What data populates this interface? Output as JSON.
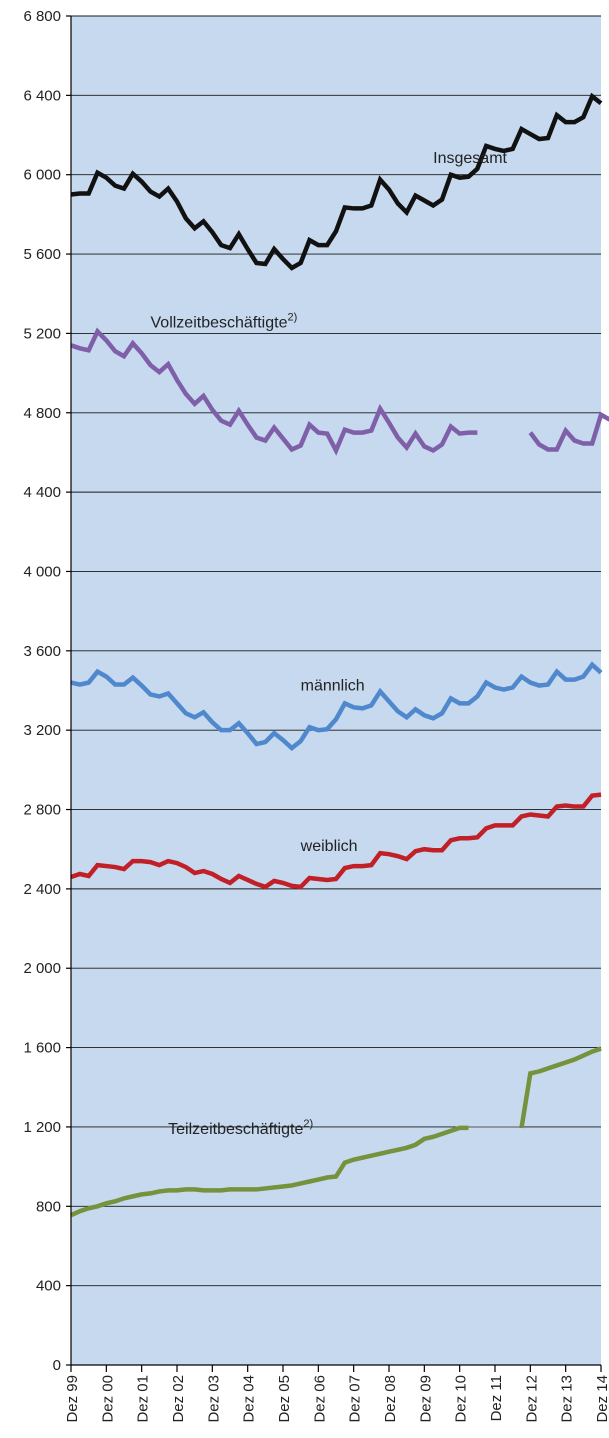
{
  "colors": {
    "plot_background": "#c6d9ef",
    "grid": "#1a1a1a",
    "axis": "#000000",
    "text": "#222222"
  },
  "chart_data": {
    "type": "line",
    "ylim": [
      0,
      6800
    ],
    "yticks": [
      0,
      400,
      800,
      1200,
      1600,
      2000,
      2400,
      2800,
      3200,
      3600,
      4000,
      4400,
      4800,
      5200,
      5600,
      6000,
      6400,
      6800
    ],
    "ytick_labels": [
      "0",
      "400",
      "800",
      "1 200",
      "1 600",
      "2 000",
      "2 400",
      "2 800",
      "3 200",
      "3 600",
      "4 000",
      "4 400",
      "4 800",
      "5 200",
      "5 600",
      "6 000",
      "6 400",
      "6 800"
    ],
    "xticks": [
      "Dez 99",
      "Dez 00",
      "Dez 01",
      "Dez 02",
      "Dez 03",
      "Dez 04",
      "Dez 05",
      "Dez 06",
      "Dez 07",
      "Dez 08",
      "Dez 09",
      "Dez 10",
      "Dez 11",
      "Dez 12",
      "Dez 13",
      "Dez 14"
    ],
    "x_unit": "quarter",
    "x_start": "Dez 99",
    "x_end": "Dez 14",
    "grid": "horizontal",
    "series": [
      {
        "name": "Insgesamt",
        "color": "#111111",
        "values": [
          5900,
          5905,
          5905,
          6010,
          5985,
          5945,
          5930,
          6005,
          5965,
          5915,
          5890,
          5930,
          5865,
          5780,
          5730,
          5765,
          5710,
          5645,
          5630,
          5700,
          5625,
          5555,
          5550,
          5625,
          5575,
          5530,
          5555,
          5670,
          5645,
          5645,
          5715,
          5835,
          5830,
          5830,
          5845,
          5975,
          5925,
          5855,
          5810,
          5895,
          5870,
          5845,
          5875,
          6000,
          5985,
          5990,
          6030,
          6145,
          6130,
          6120,
          6130,
          6230,
          6205,
          6180,
          6185,
          6300,
          6265,
          6265,
          6290,
          6395,
          6360
        ]
      },
      {
        "name": "Vollzeitbeschäftigte",
        "label_superscript": "2)",
        "color": "#7f5fa8",
        "values": [
          5140,
          5125,
          5115,
          5210,
          5165,
          5110,
          5085,
          5150,
          5100,
          5040,
          5005,
          5045,
          4965,
          4895,
          4845,
          4885,
          4815,
          4760,
          4740,
          4810,
          4740,
          4675,
          4660,
          4725,
          4670,
          4615,
          4635,
          4740,
          4700,
          4695,
          4610,
          4715,
          4700,
          4700,
          4710,
          4820,
          4750,
          4675,
          4625,
          4695,
          4630,
          4610,
          4640,
          4730,
          4695,
          4700,
          4700,
          null,
          null,
          null,
          null,
          null,
          4700,
          4640,
          4615,
          4615,
          4710,
          4660,
          4645,
          4645,
          4790,
          4765
        ]
      },
      {
        "name": "männlich",
        "color": "#4f88cc",
        "values": [
          3440,
          3430,
          3440,
          3495,
          3470,
          3430,
          3430,
          3465,
          3425,
          3380,
          3370,
          3385,
          3335,
          3285,
          3265,
          3290,
          3240,
          3200,
          3200,
          3235,
          3185,
          3130,
          3140,
          3185,
          3150,
          3110,
          3145,
          3215,
          3200,
          3205,
          3255,
          3335,
          3315,
          3310,
          3325,
          3395,
          3345,
          3295,
          3265,
          3305,
          3275,
          3260,
          3285,
          3360,
          3335,
          3335,
          3370,
          3440,
          3415,
          3405,
          3415,
          3470,
          3440,
          3425,
          3430,
          3495,
          3455,
          3455,
          3470,
          3530,
          3490
        ]
      },
      {
        "name": "weiblich",
        "color": "#c22027",
        "values": [
          2460,
          2475,
          2465,
          2520,
          2515,
          2510,
          2500,
          2540,
          2540,
          2535,
          2520,
          2540,
          2530,
          2510,
          2480,
          2490,
          2475,
          2450,
          2430,
          2465,
          2445,
          2425,
          2410,
          2440,
          2430,
          2415,
          2410,
          2455,
          2450,
          2445,
          2450,
          2505,
          2515,
          2515,
          2520,
          2580,
          2575,
          2565,
          2550,
          2590,
          2600,
          2595,
          2595,
          2645,
          2655,
          2655,
          2660,
          2705,
          2720,
          2720,
          2720,
          2765,
          2775,
          2770,
          2765,
          2815,
          2820,
          2815,
          2815,
          2870,
          2875
        ]
      },
      {
        "name": "Teilzeitbeschäftigte",
        "label_superscript": "2)",
        "color": "#76923c",
        "values": [
          755,
          775,
          790,
          800,
          815,
          825,
          840,
          850,
          860,
          865,
          875,
          880,
          880,
          885,
          885,
          880,
          880,
          880,
          885,
          885,
          885,
          885,
          890,
          895,
          900,
          905,
          915,
          925,
          935,
          945,
          950,
          1020,
          1035,
          1045,
          1055,
          1065,
          1075,
          1085,
          1095,
          1110,
          1140,
          1150,
          1165,
          1180,
          1195,
          1195,
          null,
          null,
          null,
          null,
          null,
          1195,
          1470,
          1480,
          1495,
          1510,
          1525,
          1540,
          1560,
          1580,
          1595
        ]
      }
    ],
    "gap_connectors": [
      {
        "series": "Vollzeitbeschäftigte",
        "from_index": 46,
        "to_index": 52,
        "drawn": false
      },
      {
        "series": "Teilzeitbeschäftigte",
        "from_index": 45,
        "to_index": 51,
        "y": 1200,
        "style": "thin"
      }
    ],
    "annotations": [
      {
        "text": "Insgesamt",
        "x_index": 41,
        "y": 6060
      },
      {
        "text": "Vollzeitbeschäftigte",
        "superscript": "2)",
        "x_index": 9,
        "y": 5230
      },
      {
        "text": "männlich",
        "x_index": 26,
        "y": 3400
      },
      {
        "text": "weiblich",
        "x_index": 26,
        "y": 2590
      },
      {
        "text": "Teilzeitbeschäftigte",
        "superscript": "2)",
        "x_index": 11,
        "y": 1165
      }
    ]
  }
}
